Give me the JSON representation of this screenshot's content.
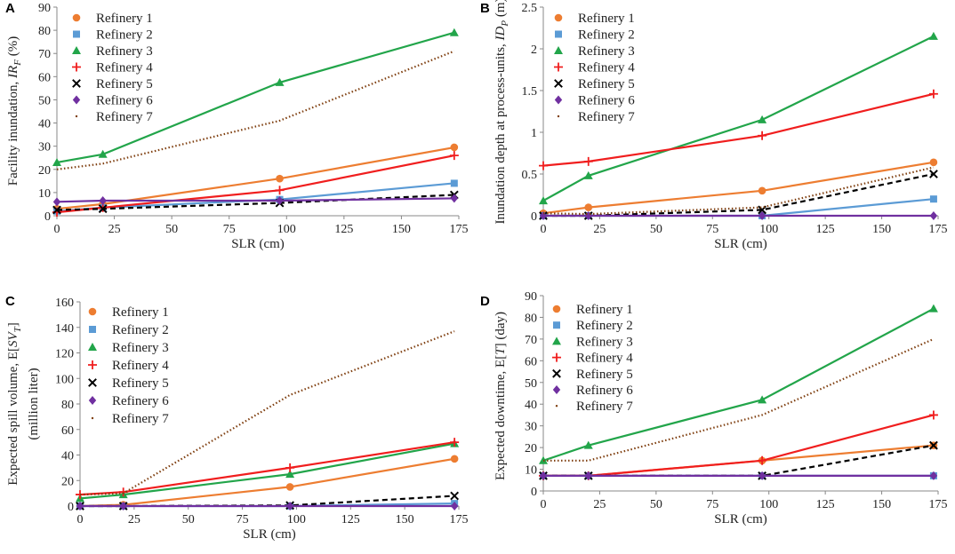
{
  "series_styles": [
    {
      "name": "Refinery 1",
      "color": "#ED7D31",
      "marker": "circle",
      "dash": ""
    },
    {
      "name": "Refinery 2",
      "color": "#5B9BD5",
      "marker": "square",
      "dash": ""
    },
    {
      "name": "Refinery 3",
      "color": "#22A54A",
      "marker": "triangle",
      "dash": ""
    },
    {
      "name": "Refinery 4",
      "color": "#F01E1E",
      "marker": "plus",
      "dash": ""
    },
    {
      "name": "Refinery 5",
      "color": "#000000",
      "marker": "x",
      "dash": "6,4"
    },
    {
      "name": "Refinery 6",
      "color": "#7030A0",
      "marker": "diamond",
      "dash": ""
    },
    {
      "name": "Refinery 7",
      "color": "#7F3F10",
      "marker": "dot",
      "dash": "1.5,2.5"
    }
  ],
  "chart_data": [
    {
      "panel": "A",
      "type": "line",
      "xlabel": "SLR (cm)",
      "ylabel": "Facility inundation, IR_F (%)",
      "ylabel_parts": [
        "Facility inundation, ",
        "IR",
        "F",
        " (%)"
      ],
      "xlim": [
        0,
        175
      ],
      "ylim": [
        0,
        90
      ],
      "xticks": [
        0,
        25,
        50,
        75,
        100,
        125,
        150,
        175
      ],
      "yticks": [
        0,
        10,
        20,
        30,
        40,
        50,
        60,
        70,
        80,
        90
      ],
      "x": [
        0,
        20,
        97,
        173
      ],
      "series": [
        {
          "name": "Refinery 1",
          "values": [
            3,
            5,
            16,
            29.5
          ]
        },
        {
          "name": "Refinery 2",
          "values": [
            2,
            3.5,
            7,
            14
          ]
        },
        {
          "name": "Refinery 3",
          "values": [
            23,
            26.5,
            57.5,
            79
          ]
        },
        {
          "name": "Refinery 4",
          "values": [
            1.5,
            3.5,
            11,
            26
          ]
        },
        {
          "name": "Refinery 5",
          "values": [
            2.5,
            3,
            5.5,
            9
          ]
        },
        {
          "name": "Refinery 6",
          "values": [
            6,
            6.5,
            6.5,
            7.5
          ]
        },
        {
          "name": "Refinery 7",
          "values": [
            20,
            22.5,
            41,
            71
          ]
        }
      ]
    },
    {
      "panel": "B",
      "type": "line",
      "xlabel": "SLR (cm)",
      "ylabel": "Inundation depth at process-units, ID_P (m)",
      "ylabel_parts": [
        "Inundation depth at process-units, ",
        "ID",
        "P",
        " (m)"
      ],
      "xlim": [
        0,
        175
      ],
      "ylim": [
        0,
        2.5
      ],
      "xticks": [
        0,
        25,
        50,
        75,
        100,
        125,
        150,
        175
      ],
      "yticks": [
        0,
        0.5,
        1,
        1.5,
        2,
        2.5
      ],
      "ytick_labels": [
        "0",
        "0.5",
        "1",
        "1.5",
        "2",
        "2.5"
      ],
      "x": [
        0,
        20,
        97,
        173
      ],
      "series": [
        {
          "name": "Refinery 1",
          "values": [
            0.03,
            0.1,
            0.3,
            0.64
          ]
        },
        {
          "name": "Refinery 2",
          "values": [
            0,
            0,
            0,
            0.2
          ]
        },
        {
          "name": "Refinery 3",
          "values": [
            0.18,
            0.48,
            1.15,
            2.15
          ]
        },
        {
          "name": "Refinery 4",
          "values": [
            0.6,
            0.65,
            0.96,
            1.46
          ]
        },
        {
          "name": "Refinery 5",
          "values": [
            0,
            0,
            0.07,
            0.5
          ]
        },
        {
          "name": "Refinery 6",
          "values": [
            0,
            0,
            0,
            0
          ]
        },
        {
          "name": "Refinery 7",
          "values": [
            0.03,
            0.02,
            0.1,
            0.58
          ]
        }
      ]
    },
    {
      "panel": "C",
      "type": "line",
      "xlabel": "SLR (cm)",
      "ylabel": "Expected spill volume, E[SV_T] (million liter)",
      "ylabel_parts": [
        "Expected spill volume, E[",
        "SV",
        "T",
        "]"
      ],
      "ylabel2": "(million liter)",
      "xlim": [
        0,
        175
      ],
      "ylim": [
        0,
        160
      ],
      "xticks": [
        0,
        25,
        50,
        75,
        100,
        125,
        150,
        175
      ],
      "yticks": [
        0,
        20,
        40,
        60,
        80,
        100,
        120,
        140,
        160
      ],
      "x": [
        0,
        20,
        97,
        173
      ],
      "series": [
        {
          "name": "Refinery 1",
          "values": [
            0,
            1,
            15,
            37
          ]
        },
        {
          "name": "Refinery 2",
          "values": [
            0,
            0,
            0,
            2
          ]
        },
        {
          "name": "Refinery 3",
          "values": [
            6,
            9,
            25,
            49
          ]
        },
        {
          "name": "Refinery 4",
          "values": [
            9,
            11,
            30,
            50
          ]
        },
        {
          "name": "Refinery 5",
          "values": [
            0,
            0,
            0.5,
            8
          ]
        },
        {
          "name": "Refinery 6",
          "values": [
            0,
            0,
            0,
            0
          ]
        },
        {
          "name": "Refinery 7",
          "values": [
            9,
            10,
            87,
            137
          ]
        }
      ]
    },
    {
      "panel": "D",
      "type": "line",
      "xlabel": "SLR (cm)",
      "ylabel": "Expected downtime, E[T] (day)",
      "ylabel_parts": [
        "Expected downtime, E[",
        "T",
        "",
        "] (day)"
      ],
      "xlim": [
        0,
        175
      ],
      "ylim": [
        0,
        90
      ],
      "xticks": [
        0,
        25,
        50,
        75,
        100,
        125,
        150,
        175
      ],
      "yticks": [
        0,
        10,
        20,
        30,
        40,
        50,
        60,
        70,
        80,
        90
      ],
      "x": [
        0,
        20,
        97,
        173
      ],
      "series": [
        {
          "name": "Refinery 1",
          "values": [
            7,
            7,
            14,
            21
          ]
        },
        {
          "name": "Refinery 2",
          "values": [
            7,
            7,
            7,
            7
          ]
        },
        {
          "name": "Refinery 3",
          "values": [
            14,
            21,
            42,
            84
          ]
        },
        {
          "name": "Refinery 4",
          "values": [
            7,
            7,
            14,
            35
          ]
        },
        {
          "name": "Refinery 5",
          "values": [
            7,
            7,
            7,
            21
          ]
        },
        {
          "name": "Refinery 6",
          "values": [
            7,
            7,
            7,
            7
          ]
        },
        {
          "name": "Refinery 7",
          "values": [
            14,
            14,
            35,
            70
          ]
        }
      ]
    }
  ]
}
